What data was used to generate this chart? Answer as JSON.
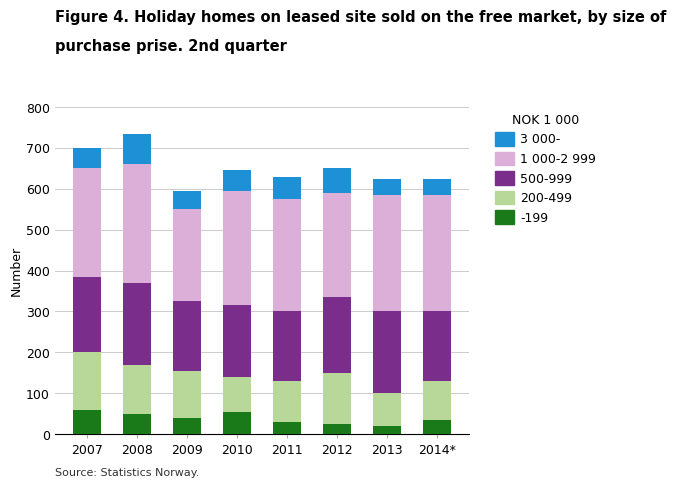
{
  "title_line1": "Figure 4. Holiday homes on leased site sold on the free market, by size of",
  "title_line2": "purchase prise. 2nd quarter",
  "ylabel": "Number",
  "source": "Source: Statistics Norway.",
  "categories": [
    "2007",
    "2008",
    "2009",
    "2010",
    "2011",
    "2012",
    "2013",
    "2014*"
  ],
  "legend_title": "NOK 1 000",
  "series": {
    "-199": [
      60,
      50,
      40,
      55,
      30,
      25,
      20,
      35
    ],
    "200-499": [
      140,
      120,
      115,
      85,
      100,
      125,
      80,
      95
    ],
    "500-999": [
      185,
      200,
      170,
      175,
      170,
      185,
      200,
      170
    ],
    "1 000-2 999": [
      265,
      290,
      225,
      280,
      275,
      255,
      285,
      285
    ],
    "3 000-": [
      50,
      75,
      45,
      50,
      55,
      60,
      40,
      40
    ]
  },
  "colors": {
    "-199": "#1a7a1a",
    "200-499": "#b8d89a",
    "500-999": "#7b2d8b",
    "1 000-2 999": "#dbafd8",
    "3 000-": "#1e90d6"
  },
  "ylim": [
    0,
    800
  ],
  "yticks": [
    0,
    100,
    200,
    300,
    400,
    500,
    600,
    700,
    800
  ],
  "grid_color": "#cccccc",
  "title_fontsize": 10.5,
  "axis_fontsize": 9,
  "legend_fontsize": 9,
  "source_fontsize": 8
}
